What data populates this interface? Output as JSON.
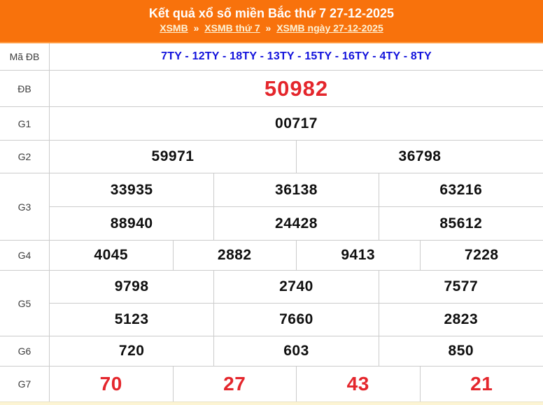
{
  "header": {
    "title": "Kết quả xổ số miền Bắc thứ 7 27-12-2025",
    "separator": "»",
    "breadcrumb": [
      {
        "label": "XSMB"
      },
      {
        "label": "XSMB thứ 7"
      },
      {
        "label": "XSMB ngày 27-12-2025"
      }
    ]
  },
  "colors": {
    "header_orange": "#f8720c",
    "header_orange_light_edge": "#ff9d45",
    "title_white": "#ffffff",
    "breadcrumb_link_cream": "#fdf3d7",
    "special_red": "#e4262c",
    "code_blue": "#1313dc",
    "number_black": "#0f0f0f",
    "border_gray": "#cccccc",
    "footer_cream": "#fcf4d3"
  },
  "table": {
    "rows": [
      {
        "label": "Mã ĐB",
        "lines": [
          [
            "7TY - 12TY - 18TY - 13TY - 15TY - 16TY - 4TY - 8TY"
          ]
        ]
      },
      {
        "label": "ĐB",
        "lines": [
          [
            "50982"
          ]
        ]
      },
      {
        "label": "G1",
        "lines": [
          [
            "00717"
          ]
        ]
      },
      {
        "label": "G2",
        "lines": [
          [
            "59971",
            "36798"
          ]
        ]
      },
      {
        "label": "G3",
        "lines": [
          [
            "33935",
            "36138",
            "63216"
          ],
          [
            "88940",
            "24428",
            "85612"
          ]
        ]
      },
      {
        "label": "G4",
        "lines": [
          [
            "4045",
            "2882",
            "9413",
            "7228"
          ]
        ]
      },
      {
        "label": "G5",
        "lines": [
          [
            "9798",
            "2740",
            "7577"
          ],
          [
            "5123",
            "7660",
            "2823"
          ]
        ]
      },
      {
        "label": "G6",
        "lines": [
          [
            "720",
            "603",
            "850"
          ]
        ]
      },
      {
        "label": "G7",
        "lines": [
          [
            "70",
            "27",
            "43",
            "21"
          ]
        ]
      }
    ]
  }
}
